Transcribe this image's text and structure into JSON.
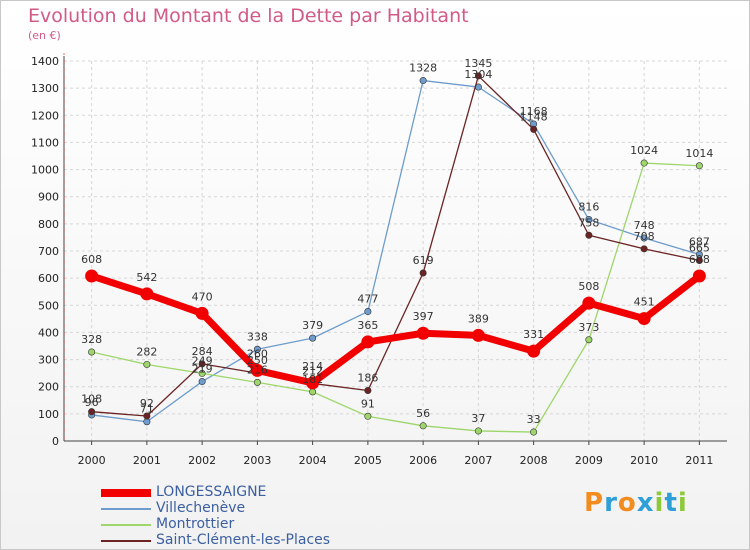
{
  "chart_data": {
    "type": "line",
    "title": "Evolution du Montant de la Dette par Habitant",
    "unit_label": "(en €)",
    "xlabel": "",
    "ylabel": "",
    "categories": [
      "2000",
      "2001",
      "2002",
      "2003",
      "2004",
      "2005",
      "2006",
      "2007",
      "2008",
      "2009",
      "2010",
      "2011"
    ],
    "ylim": [
      0,
      1400
    ],
    "yticks": [
      0,
      100,
      200,
      300,
      400,
      500,
      600,
      700,
      800,
      900,
      1000,
      1100,
      1200,
      1300,
      1400
    ],
    "grid": true,
    "series": [
      {
        "name": "Villechenève",
        "color": "#6e9ccc",
        "values": [
          96,
          71,
          219,
          338,
          379,
          477,
          1328,
          1304,
          1168,
          816,
          748,
          687
        ]
      },
      {
        "name": "Montrottier",
        "color": "#9ed66b",
        "values": [
          328,
          282,
          249,
          216,
          181,
          91,
          56,
          37,
          33,
          373,
          1024,
          1014
        ]
      },
      {
        "name": "Saint-Clément-les-Places",
        "color": "#6b2323",
        "values": [
          108,
          92,
          284,
          250,
          212,
          186,
          619,
          1345,
          1148,
          758,
          708,
          665
        ]
      },
      {
        "name": "LONGESSAIGNE",
        "color": "#f20000",
        "values": [
          608,
          542,
          470,
          260,
          214,
          365,
          397,
          389,
          331,
          508,
          451,
          608
        ]
      }
    ],
    "legend_order": [
      "LONGESSAIGNE",
      "Villechenève",
      "Montrottier",
      "Saint-Clément-les-Places"
    ]
  },
  "logo": {
    "text": "Proxiti",
    "letter_colors": [
      "#f28c1e",
      "#2f9fd8",
      "#f28c1e",
      "#2f9fd8",
      "#8fc93a",
      "#2f9fd8",
      "#8fc93a"
    ]
  }
}
